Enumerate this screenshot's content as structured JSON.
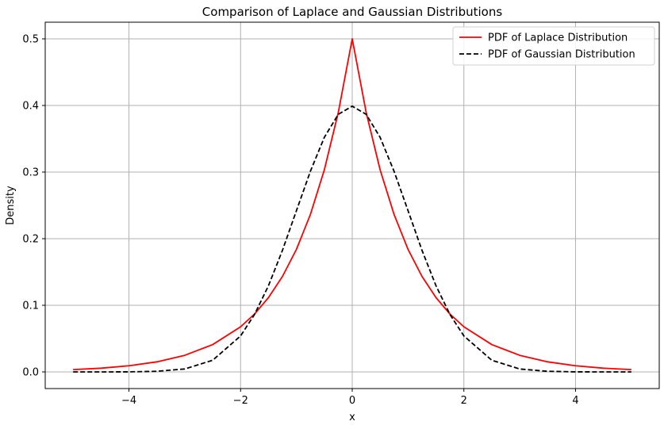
{
  "chart_data": {
    "type": "line",
    "title": "Comparison of Laplace and Gaussian Distributions",
    "xlabel": "x",
    "ylabel": "Density",
    "xlim": [
      -5.5,
      5.5
    ],
    "ylim": [
      -0.025,
      0.525
    ],
    "xticks": [
      -4,
      -2,
      0,
      2,
      4
    ],
    "xtick_labels": [
      "−4",
      "−2",
      "0",
      "2",
      "4"
    ],
    "yticks": [
      0.0,
      0.1,
      0.2,
      0.3,
      0.4,
      0.5
    ],
    "ytick_labels": [
      "0.0",
      "0.1",
      "0.2",
      "0.3",
      "0.4",
      "0.5"
    ],
    "grid": true,
    "legend_position": "top-right",
    "x": [
      -5.0,
      -4.5,
      -4.0,
      -3.5,
      -3.0,
      -2.5,
      -2.0,
      -1.75,
      -1.5,
      -1.25,
      -1.0,
      -0.75,
      -0.5,
      -0.25,
      0.0,
      0.25,
      0.5,
      0.75,
      1.0,
      1.25,
      1.5,
      1.75,
      2.0,
      2.5,
      3.0,
      3.5,
      4.0,
      4.5,
      5.0
    ],
    "series": [
      {
        "name": "PDF of Laplace Distribution",
        "color": "#ff0000",
        "style": "solid",
        "values": [
          0.0034,
          0.0056,
          0.0092,
          0.0151,
          0.0249,
          0.041,
          0.0677,
          0.0869,
          0.1116,
          0.1433,
          0.1839,
          0.2362,
          0.3033,
          0.3894,
          0.5,
          0.3894,
          0.3033,
          0.2362,
          0.1839,
          0.1433,
          0.1116,
          0.0869,
          0.0677,
          0.041,
          0.0249,
          0.0151,
          0.0092,
          0.0056,
          0.0034
        ]
      },
      {
        "name": "PDF of Gaussian Distribution",
        "color": "#000000",
        "style": "dashed",
        "values": [
          0.0,
          0.0,
          0.0001,
          0.0009,
          0.0044,
          0.0175,
          0.054,
          0.0863,
          0.1295,
          0.1826,
          0.242,
          0.3011,
          0.3521,
          0.3867,
          0.3989,
          0.3867,
          0.3521,
          0.3011,
          0.242,
          0.1826,
          0.1295,
          0.0863,
          0.054,
          0.0175,
          0.0044,
          0.0009,
          0.0001,
          0.0,
          0.0
        ]
      }
    ]
  }
}
